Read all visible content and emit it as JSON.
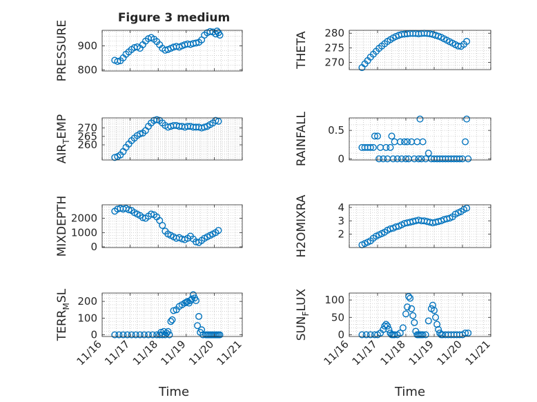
{
  "figure_title": "Figure 3 medium",
  "colors": {
    "marker": "#0072BD",
    "axis": "#262626",
    "grid": "#b0b0b0"
  },
  "chart_data": [
    {
      "type": "scatter",
      "id": "pressure",
      "ylabel": "PRESSURE",
      "ylim": [
        795,
        965
      ],
      "yticks": [
        800,
        900
      ],
      "xlim": [
        0,
        5
      ],
      "grid": true,
      "x": [
        0.45,
        0.55,
        0.65,
        0.75,
        0.85,
        0.95,
        1.05,
        1.15,
        1.25,
        1.35,
        1.45,
        1.55,
        1.65,
        1.75,
        1.85,
        1.95,
        2.05,
        2.15,
        2.25,
        2.35,
        2.45,
        2.55,
        2.65,
        2.75,
        2.85,
        2.95,
        3.05,
        3.15,
        3.25,
        3.35,
        3.45,
        3.55,
        3.65,
        3.75,
        3.85,
        3.95,
        4.05,
        4.1,
        4.15,
        4.2
      ],
      "y": [
        840,
        835,
        838,
        850,
        865,
        875,
        885,
        893,
        896,
        890,
        905,
        920,
        930,
        935,
        928,
        918,
        905,
        890,
        882,
        885,
        890,
        895,
        898,
        895,
        900,
        905,
        908,
        906,
        910,
        912,
        915,
        925,
        945,
        955,
        960,
        958,
        950,
        962,
        955,
        945
      ]
    },
    {
      "type": "scatter",
      "id": "theta",
      "ylabel": "THETA",
      "ylim": [
        267.5,
        281
      ],
      "yticks": [
        270,
        275,
        280
      ],
      "xlim": [
        0,
        5
      ],
      "grid": true,
      "x": [
        0.45,
        0.55,
        0.65,
        0.75,
        0.85,
        0.95,
        1.05,
        1.15,
        1.25,
        1.35,
        1.45,
        1.55,
        1.65,
        1.75,
        1.85,
        1.95,
        2.05,
        2.15,
        2.25,
        2.35,
        2.45,
        2.55,
        2.65,
        2.75,
        2.85,
        2.95,
        3.05,
        3.15,
        3.25,
        3.35,
        3.45,
        3.55,
        3.65,
        3.75,
        3.85,
        3.95,
        4.05,
        4.15
      ],
      "y": [
        268.2,
        269.5,
        270.6,
        271.8,
        272.8,
        273.8,
        274.8,
        275.6,
        276.4,
        277.2,
        277.8,
        278.4,
        278.9,
        279.3,
        279.6,
        279.7,
        279.8,
        279.9,
        279.9,
        279.9,
        279.8,
        279.9,
        280,
        279.9,
        279.8,
        279.6,
        279.3,
        279,
        278.6,
        278.1,
        277.6,
        277.1,
        276.6,
        276.1,
        275.6,
        275.5,
        276.2,
        277.2
      ]
    },
    {
      "type": "scatter",
      "id": "air_temp",
      "ylabel": "AIR_TEMP",
      "ylim": [
        251,
        276
      ],
      "yticks": [
        260,
        265,
        270
      ],
      "xlim": [
        0,
        5
      ],
      "grid": true,
      "x": [
        0.45,
        0.55,
        0.65,
        0.75,
        0.85,
        0.95,
        1.05,
        1.15,
        1.25,
        1.35,
        1.45,
        1.55,
        1.65,
        1.75,
        1.85,
        1.95,
        2.05,
        2.15,
        2.25,
        2.35,
        2.45,
        2.55,
        2.65,
        2.75,
        2.85,
        2.95,
        3.05,
        3.15,
        3.25,
        3.35,
        3.45,
        3.55,
        3.65,
        3.75,
        3.85,
        3.95,
        4.05,
        4.15
      ],
      "y": [
        252.5,
        253,
        254,
        256,
        258.5,
        260.5,
        262.5,
        264,
        265.5,
        266.5,
        267,
        268.5,
        271,
        273,
        274.5,
        275,
        274.5,
        273,
        271.5,
        270.5,
        271,
        271.5,
        271.5,
        271,
        271,
        270.5,
        271,
        271,
        270.5,
        270.5,
        270.5,
        270,
        270.5,
        271,
        272,
        273,
        274.5,
        274
      ]
    },
    {
      "type": "scatter",
      "id": "rainfall",
      "ylabel": "RAINFALL",
      "ylim": [
        -0.02,
        0.72
      ],
      "yticks": [
        0,
        0.5
      ],
      "xlim": [
        0,
        5
      ],
      "grid": true,
      "x": [
        0.45,
        0.55,
        0.65,
        0.75,
        0.85,
        0.9,
        1.0,
        1.05,
        1.1,
        1.2,
        1.3,
        1.35,
        1.45,
        1.5,
        1.55,
        1.6,
        1.7,
        1.8,
        1.85,
        1.95,
        2.0,
        2.05,
        2.1,
        2.2,
        2.3,
        2.4,
        2.45,
        2.5,
        2.55,
        2.6,
        2.7,
        2.8,
        2.9,
        3.0,
        3.1,
        3.2,
        3.3,
        3.4,
        3.5,
        3.6,
        3.7,
        3.8,
        3.9,
        4.0,
        4.1,
        4.15,
        4.2
      ],
      "y": [
        0.2,
        0.2,
        0.2,
        0.2,
        0.2,
        0.4,
        0.4,
        0,
        0.2,
        0,
        0.2,
        0,
        0.2,
        0.4,
        0,
        0.3,
        0,
        0.3,
        0,
        0.3,
        0,
        0.3,
        0,
        0.3,
        0,
        0.3,
        0,
        0.7,
        0,
        0.3,
        0,
        0.1,
        0,
        0,
        0,
        0,
        0,
        0,
        0,
        0,
        0,
        0,
        0,
        0,
        0.3,
        0.7,
        0
      ]
    },
    {
      "type": "scatter",
      "id": "mixdepth",
      "ylabel": "MIXDEPTH",
      "ylim": [
        -50,
        2950
      ],
      "yticks": [
        0,
        1000,
        2000
      ],
      "xlim": [
        0,
        5
      ],
      "grid": true,
      "x": [
        0.45,
        0.55,
        0.65,
        0.75,
        0.85,
        0.95,
        1.05,
        1.15,
        1.25,
        1.35,
        1.45,
        1.55,
        1.65,
        1.75,
        1.85,
        1.95,
        2.05,
        2.15,
        2.25,
        2.35,
        2.45,
        2.55,
        2.65,
        2.75,
        2.85,
        2.95,
        3.05,
        3.15,
        3.25,
        3.35,
        3.45,
        3.55,
        3.65,
        3.75,
        3.85,
        3.95,
        4.05,
        4.15
      ],
      "y": [
        2500,
        2650,
        2700,
        2650,
        2700,
        2600,
        2550,
        2400,
        2300,
        2200,
        2050,
        2000,
        2150,
        2300,
        2250,
        2100,
        1850,
        1500,
        1100,
        900,
        800,
        700,
        600,
        650,
        550,
        500,
        600,
        750,
        550,
        350,
        300,
        450,
        600,
        700,
        800,
        900,
        1000,
        1150
      ]
    },
    {
      "type": "scatter",
      "id": "h2omixra",
      "ylabel": "H2OMIXRA",
      "ylim": [
        1,
        4.2
      ],
      "yticks": [
        2,
        3,
        4
      ],
      "xlim": [
        0,
        5
      ],
      "grid": true,
      "x": [
        0.45,
        0.55,
        0.65,
        0.75,
        0.85,
        0.95,
        1.05,
        1.15,
        1.25,
        1.35,
        1.45,
        1.55,
        1.65,
        1.75,
        1.85,
        1.95,
        2.05,
        2.15,
        2.25,
        2.35,
        2.45,
        2.55,
        2.65,
        2.75,
        2.85,
        2.95,
        3.05,
        3.15,
        3.25,
        3.35,
        3.45,
        3.55,
        3.65,
        3.75,
        3.85,
        3.95,
        4.05,
        4.15
      ],
      "y": [
        1.2,
        1.3,
        1.4,
        1.5,
        1.7,
        1.85,
        1.95,
        2.05,
        2.15,
        2.3,
        2.4,
        2.45,
        2.55,
        2.6,
        2.7,
        2.8,
        2.85,
        2.9,
        2.95,
        3.0,
        3.05,
        3.0,
        3.0,
        2.95,
        2.9,
        2.85,
        2.9,
        2.95,
        3.0,
        3.1,
        3.15,
        3.2,
        3.3,
        3.5,
        3.6,
        3.7,
        3.85,
        3.95
      ]
    },
    {
      "type": "scatter",
      "id": "terr_msl",
      "ylabel": "TERR_MSL",
      "ylim": [
        -10,
        250
      ],
      "yticks": [
        0,
        100,
        200
      ],
      "xlim": [
        0,
        5
      ],
      "grid": true,
      "x": [
        0.45,
        0.6,
        0.75,
        0.9,
        1.05,
        1.2,
        1.35,
        1.5,
        1.65,
        1.8,
        1.95,
        2.05,
        2.1,
        2.15,
        2.2,
        2.25,
        2.3,
        2.35,
        2.4,
        2.45,
        2.5,
        2.55,
        2.65,
        2.75,
        2.85,
        2.95,
        3.0,
        3.05,
        3.1,
        3.15,
        3.2,
        3.25,
        3.3,
        3.35,
        3.4,
        3.45,
        3.5,
        3.55,
        3.6,
        3.7,
        3.75,
        3.8,
        3.85,
        3.9,
        3.95,
        4.0,
        4.05,
        4.1,
        4.15,
        4.2
      ],
      "y": [
        0,
        0,
        0,
        0,
        0,
        0,
        0,
        0,
        0,
        0,
        0,
        0,
        15,
        0,
        20,
        0,
        10,
        20,
        0,
        80,
        90,
        145,
        150,
        170,
        180,
        190,
        195,
        200,
        190,
        205,
        215,
        240,
        220,
        205,
        55,
        110,
        15,
        30,
        0,
        0,
        0,
        0,
        0,
        0,
        0,
        0,
        0,
        0,
        0,
        0
      ]
    },
    {
      "type": "scatter",
      "id": "sun_flux",
      "ylabel": "SUN_FLUX",
      "ylim": [
        -5,
        120
      ],
      "yticks": [
        0,
        50,
        100
      ],
      "xlim": [
        0,
        5
      ],
      "grid": true,
      "x": [
        0.45,
        0.6,
        0.75,
        0.9,
        1.0,
        1.1,
        1.2,
        1.25,
        1.3,
        1.35,
        1.4,
        1.45,
        1.5,
        1.55,
        1.6,
        1.7,
        1.8,
        1.9,
        2.0,
        2.05,
        2.1,
        2.15,
        2.2,
        2.25,
        2.3,
        2.35,
        2.4,
        2.45,
        2.5,
        2.55,
        2.6,
        2.7,
        2.8,
        2.9,
        2.95,
        3.0,
        3.05,
        3.1,
        3.15,
        3.2,
        3.25,
        3.3,
        3.4,
        3.5,
        3.6,
        3.7,
        3.8,
        3.9,
        4.0,
        4.1,
        4.2
      ],
      "y": [
        0,
        0,
        0,
        0,
        0,
        5,
        15,
        25,
        30,
        25,
        15,
        5,
        0,
        0,
        0,
        0,
        5,
        20,
        60,
        80,
        110,
        105,
        75,
        55,
        35,
        10,
        0,
        0,
        0,
        0,
        0,
        0,
        40,
        75,
        85,
        70,
        50,
        30,
        15,
        5,
        0,
        0,
        0,
        0,
        0,
        0,
        0,
        0,
        0,
        5,
        5
      ]
    }
  ],
  "x_axis": {
    "label": "Time",
    "ticks": [
      0,
      1,
      2,
      3,
      4,
      5
    ],
    "tick_labels": [
      "11/16",
      "11/17",
      "11/18",
      "11/19",
      "11/20",
      "11/21"
    ]
  }
}
